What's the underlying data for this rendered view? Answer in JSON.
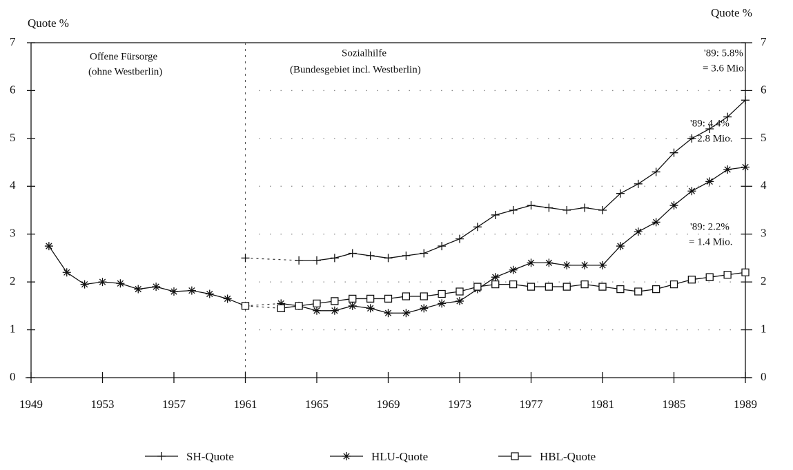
{
  "chart_data": {
    "type": "line",
    "y_label_left": "Quote %",
    "y_label_right": "Quote %",
    "annotations": [
      "Offene Fürsorge",
      "(ohne Westberlin)",
      "Sozialhilfe",
      "(Bundesgebiet incl. Westberlin)",
      "'89: 5.8%",
      "= 3.6 Mio.",
      "'89: 4.4%",
      "= 2.8 Mio.",
      "'89: 2.2%",
      "= 1.4 Mio."
    ],
    "x": [
      1950,
      1951,
      1952,
      1953,
      1954,
      1955,
      1956,
      1957,
      1958,
      1959,
      1960,
      1961,
      1962,
      1963,
      1964,
      1965,
      1966,
      1967,
      1968,
      1969,
      1970,
      1971,
      1972,
      1973,
      1974,
      1975,
      1976,
      1977,
      1978,
      1979,
      1980,
      1981,
      1982,
      1983,
      1984,
      1985,
      1986,
      1987,
      1988,
      1989
    ],
    "series": [
      {
        "name": "SH-Quote",
        "color": "#111",
        "marker": "plus",
        "values": [
          null,
          null,
          null,
          null,
          null,
          null,
          null,
          null,
          null,
          null,
          null,
          2.5,
          null,
          null,
          2.45,
          2.45,
          2.5,
          2.6,
          2.55,
          2.5,
          2.55,
          2.6,
          2.75,
          2.9,
          3.15,
          3.4,
          3.5,
          3.6,
          3.55,
          3.5,
          3.55,
          3.5,
          3.85,
          4.05,
          4.3,
          4.7,
          5.0,
          5.2,
          5.45,
          5.8
        ]
      },
      {
        "name": "HLU-Quote",
        "color": "#111",
        "marker": "star",
        "values": [
          2.75,
          2.2,
          1.95,
          2.0,
          1.97,
          1.85,
          1.9,
          1.8,
          1.82,
          1.75,
          1.65,
          1.5,
          null,
          1.55,
          1.5,
          1.4,
          1.4,
          1.5,
          1.45,
          1.35,
          1.35,
          1.45,
          1.55,
          1.6,
          1.85,
          2.1,
          2.25,
          2.4,
          2.4,
          2.35,
          2.35,
          2.35,
          2.75,
          3.05,
          3.25,
          3.6,
          3.9,
          4.1,
          4.35,
          4.4
        ]
      },
      {
        "name": "HBL-Quote",
        "color": "#111",
        "marker": "square",
        "values": [
          null,
          null,
          null,
          null,
          null,
          null,
          null,
          null,
          null,
          null,
          null,
          1.5,
          null,
          1.45,
          1.5,
          1.55,
          1.6,
          1.65,
          1.65,
          1.65,
          1.7,
          1.7,
          1.75,
          1.8,
          1.9,
          1.95,
          1.95,
          1.9,
          1.9,
          1.9,
          1.95,
          1.9,
          1.85,
          1.8,
          1.85,
          1.95,
          2.05,
          2.1,
          2.15,
          2.2
        ]
      }
    ],
    "xlim": [
      1949,
      1989
    ],
    "xticks": [
      1949,
      1953,
      1957,
      1961,
      1965,
      1969,
      1973,
      1977,
      1981,
      1985,
      1989
    ],
    "ylim": [
      0,
      7
    ],
    "yticks": [
      0,
      1,
      2,
      3,
      4,
      5,
      6,
      7
    ],
    "y2lim": [
      0,
      7
    ],
    "y2ticks": [
      0,
      1,
      2,
      3,
      4,
      5,
      6,
      7
    ],
    "grid": true,
    "legend": "bottom"
  }
}
